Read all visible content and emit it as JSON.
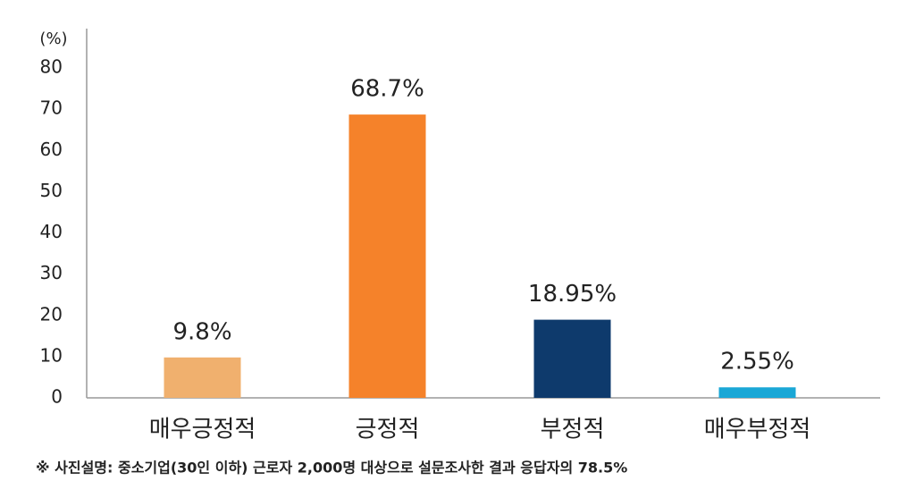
{
  "chart_data": {
    "type": "bar",
    "y_unit_label": "(%)",
    "categories": [
      "매우긍정적",
      "긍정적",
      "부정적",
      "매우부정적"
    ],
    "values": [
      9.8,
      68.7,
      18.95,
      2.55
    ],
    "value_labels": [
      "9.8%",
      "68.7%",
      "18.95%",
      "2.55%"
    ],
    "colors": [
      "#f0b06e",
      "#f5822a",
      "#0e3a6c",
      "#1aa7d6"
    ],
    "ylim": [
      0,
      80
    ],
    "yticks": [
      0,
      10,
      20,
      30,
      40,
      50,
      60,
      70,
      80
    ],
    "footnote": "※ 사진설명: 중소기업(30인 이하) 근로자 2,000명 대상으로 설문조사한 결과 응답자의 78.5%"
  }
}
